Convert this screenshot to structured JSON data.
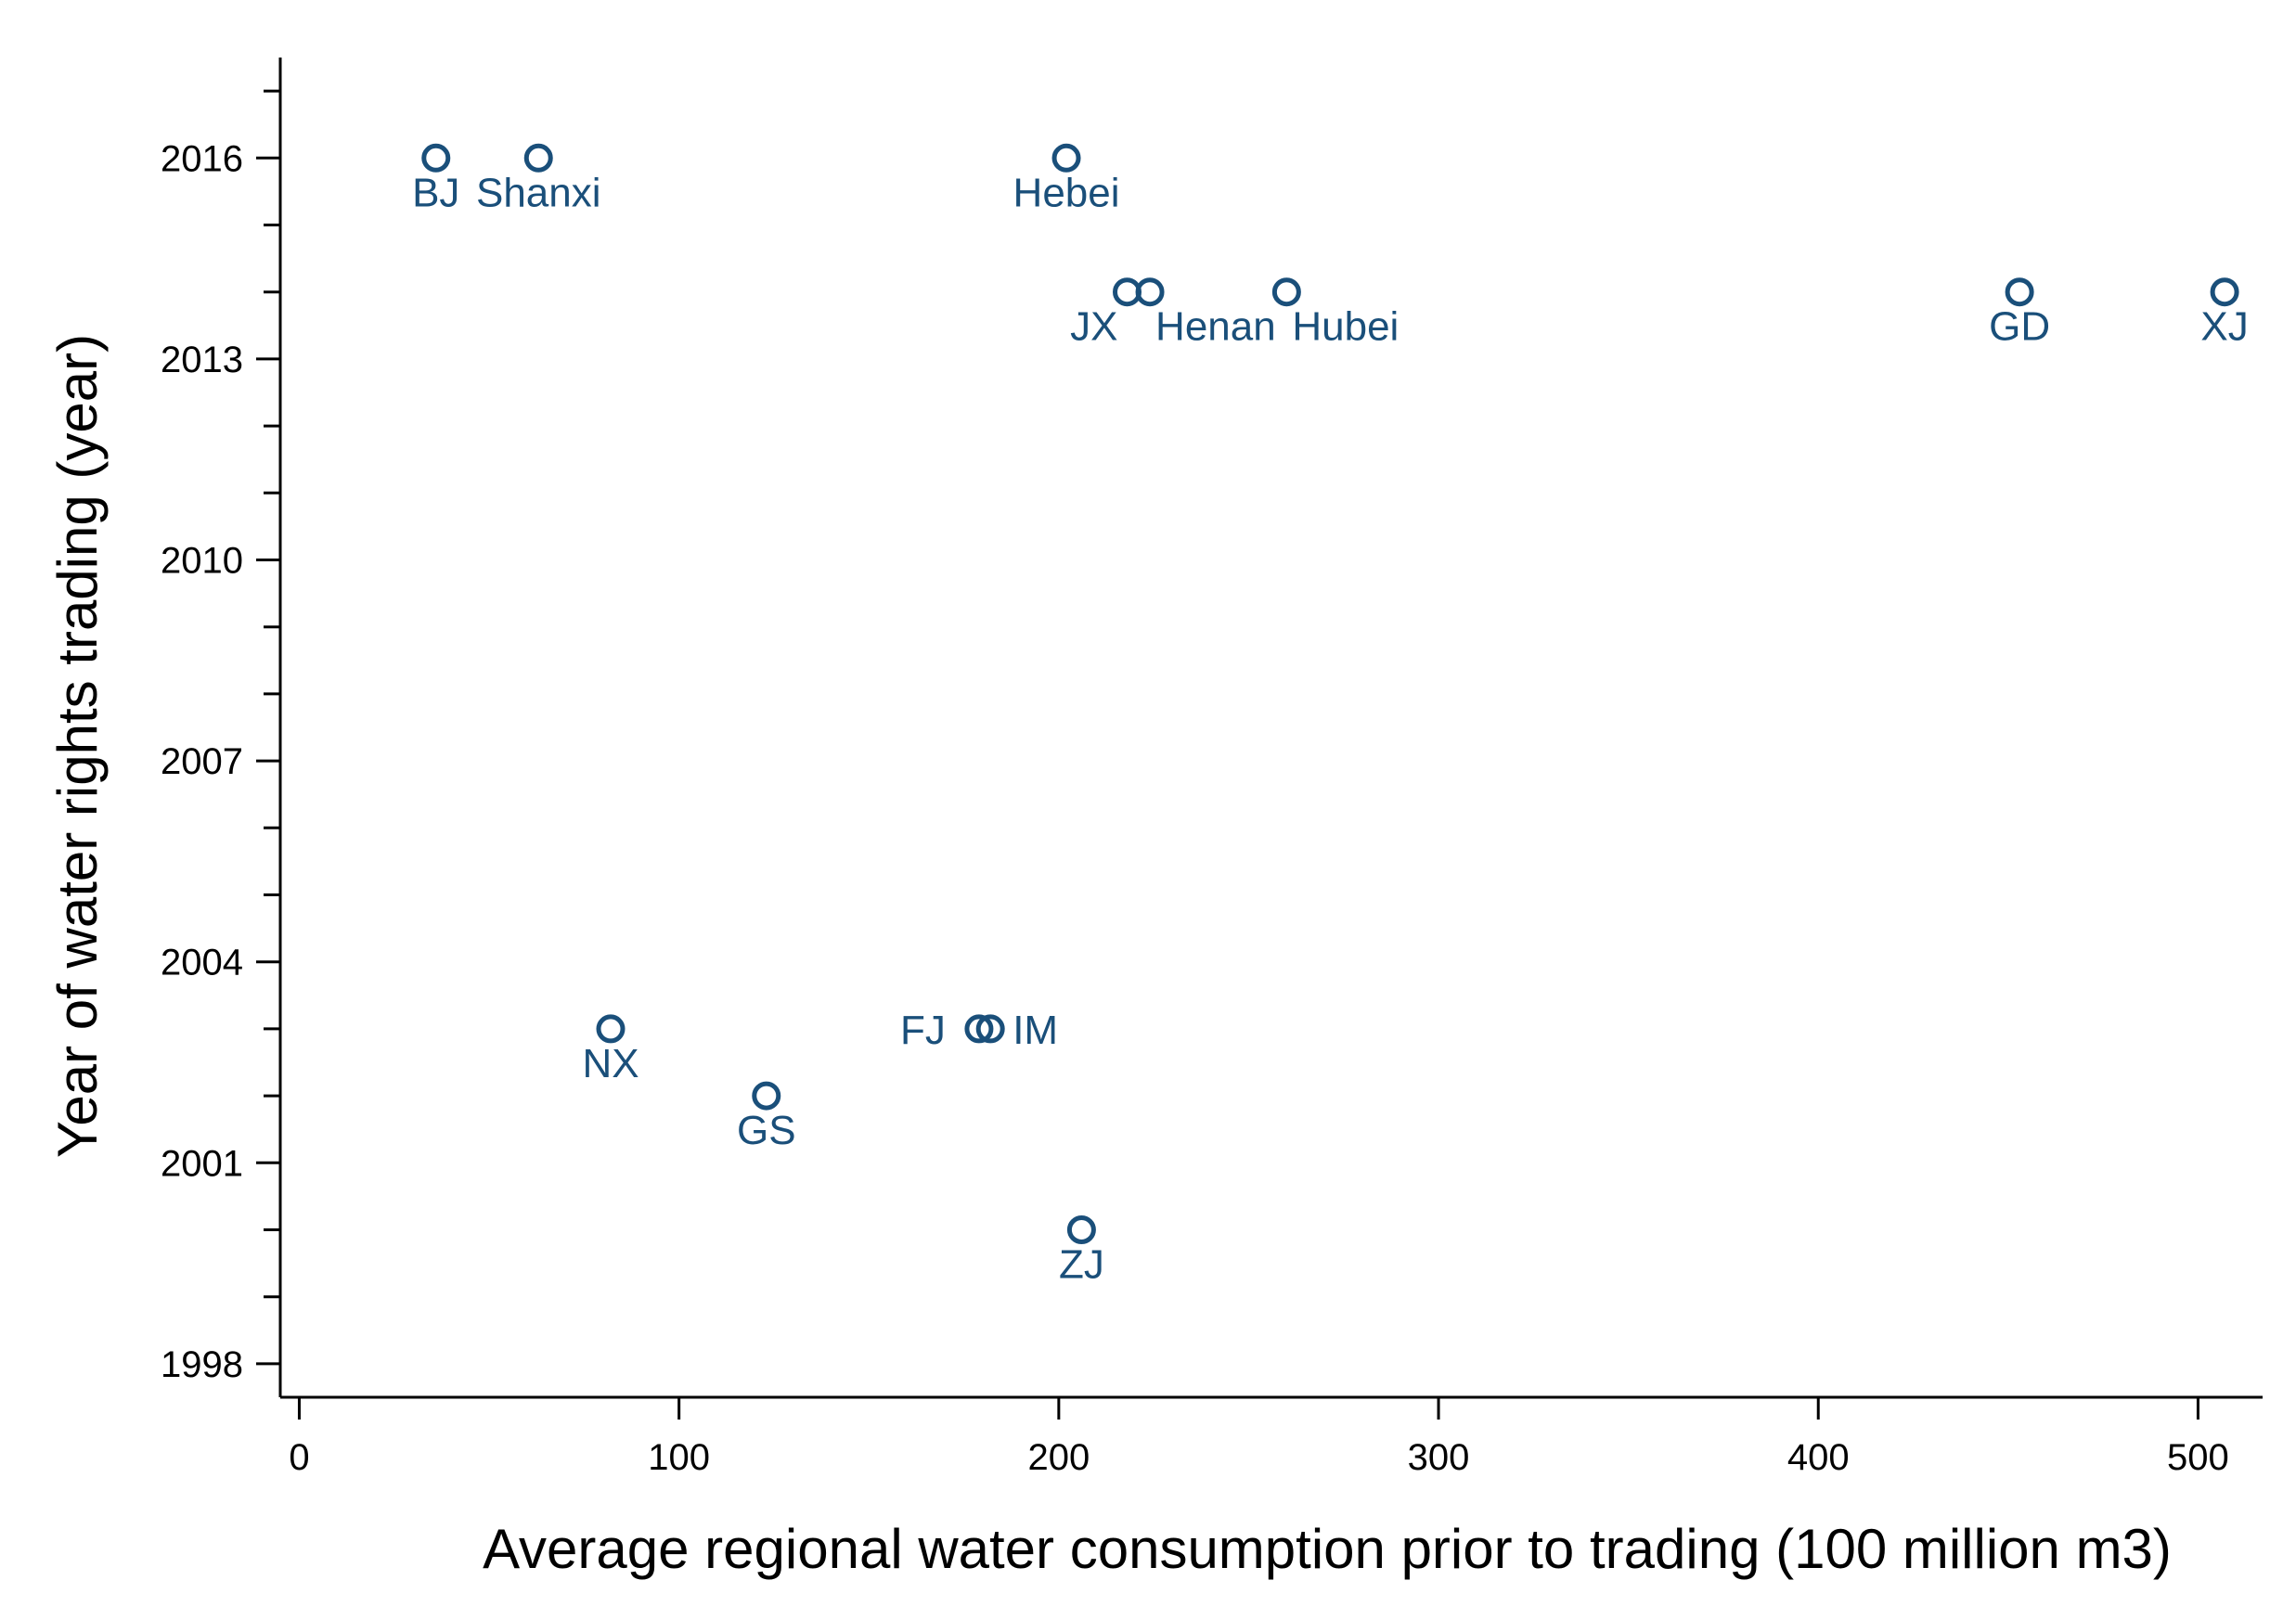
{
  "chart_data": {
    "type": "scatter",
    "title": "",
    "xlabel": "Average regional water consumption prior to trading (100 million m3)",
    "ylabel": "Year of water rights trading (year)",
    "xlim": [
      -5,
      517
    ],
    "ylim": [
      1997.5,
      2017.5
    ],
    "x_ticks": [
      0,
      100,
      200,
      300,
      400,
      500
    ],
    "x_tick_labels": [
      "0",
      "100",
      "200",
      "300",
      "400",
      "500"
    ],
    "y_major_ticks": [
      1998,
      2001,
      2004,
      2007,
      2010,
      2013,
      2016
    ],
    "y_tick_labels": [
      "1998",
      "2001",
      "2004",
      "2007",
      "2010",
      "2013",
      "2016"
    ],
    "y_minor_ticks": [
      1998,
      1999,
      2000,
      2001,
      2002,
      2003,
      2004,
      2005,
      2006,
      2007,
      2008,
      2009,
      2010,
      2011,
      2012,
      2013,
      2014,
      2015,
      2016,
      2017
    ],
    "grid": false,
    "marker_color": "#1a4f7a",
    "label_color": "#1a4f7a",
    "points": [
      {
        "label": "BJ",
        "x": 36,
        "y": 2016,
        "label_pos": "below"
      },
      {
        "label": "Shanxi",
        "x": 63,
        "y": 2016,
        "label_pos": "below"
      },
      {
        "label": "Hebei",
        "x": 202,
        "y": 2016,
        "label_pos": "below"
      },
      {
        "label": "JX",
        "x": 218,
        "y": 2014,
        "label_pos": "below-left"
      },
      {
        "label": "Henan",
        "x": 224,
        "y": 2014,
        "label_pos": "below-right"
      },
      {
        "label": "Hubei",
        "x": 260,
        "y": 2014,
        "label_pos": "below-right"
      },
      {
        "label": "GD",
        "x": 453,
        "y": 2014,
        "label_pos": "below"
      },
      {
        "label": "XJ",
        "x": 507,
        "y": 2014,
        "label_pos": "below"
      },
      {
        "label": "NX",
        "x": 82,
        "y": 2003,
        "label_pos": "below"
      },
      {
        "label": "FJ",
        "x": 179,
        "y": 2003,
        "label_pos": "left"
      },
      {
        "label": "IM",
        "x": 182,
        "y": 2003,
        "label_pos": "right"
      },
      {
        "label": "GS",
        "x": 123,
        "y": 2002,
        "label_pos": "below"
      },
      {
        "label": "ZJ",
        "x": 206,
        "y": 2000,
        "label_pos": "below"
      }
    ]
  }
}
